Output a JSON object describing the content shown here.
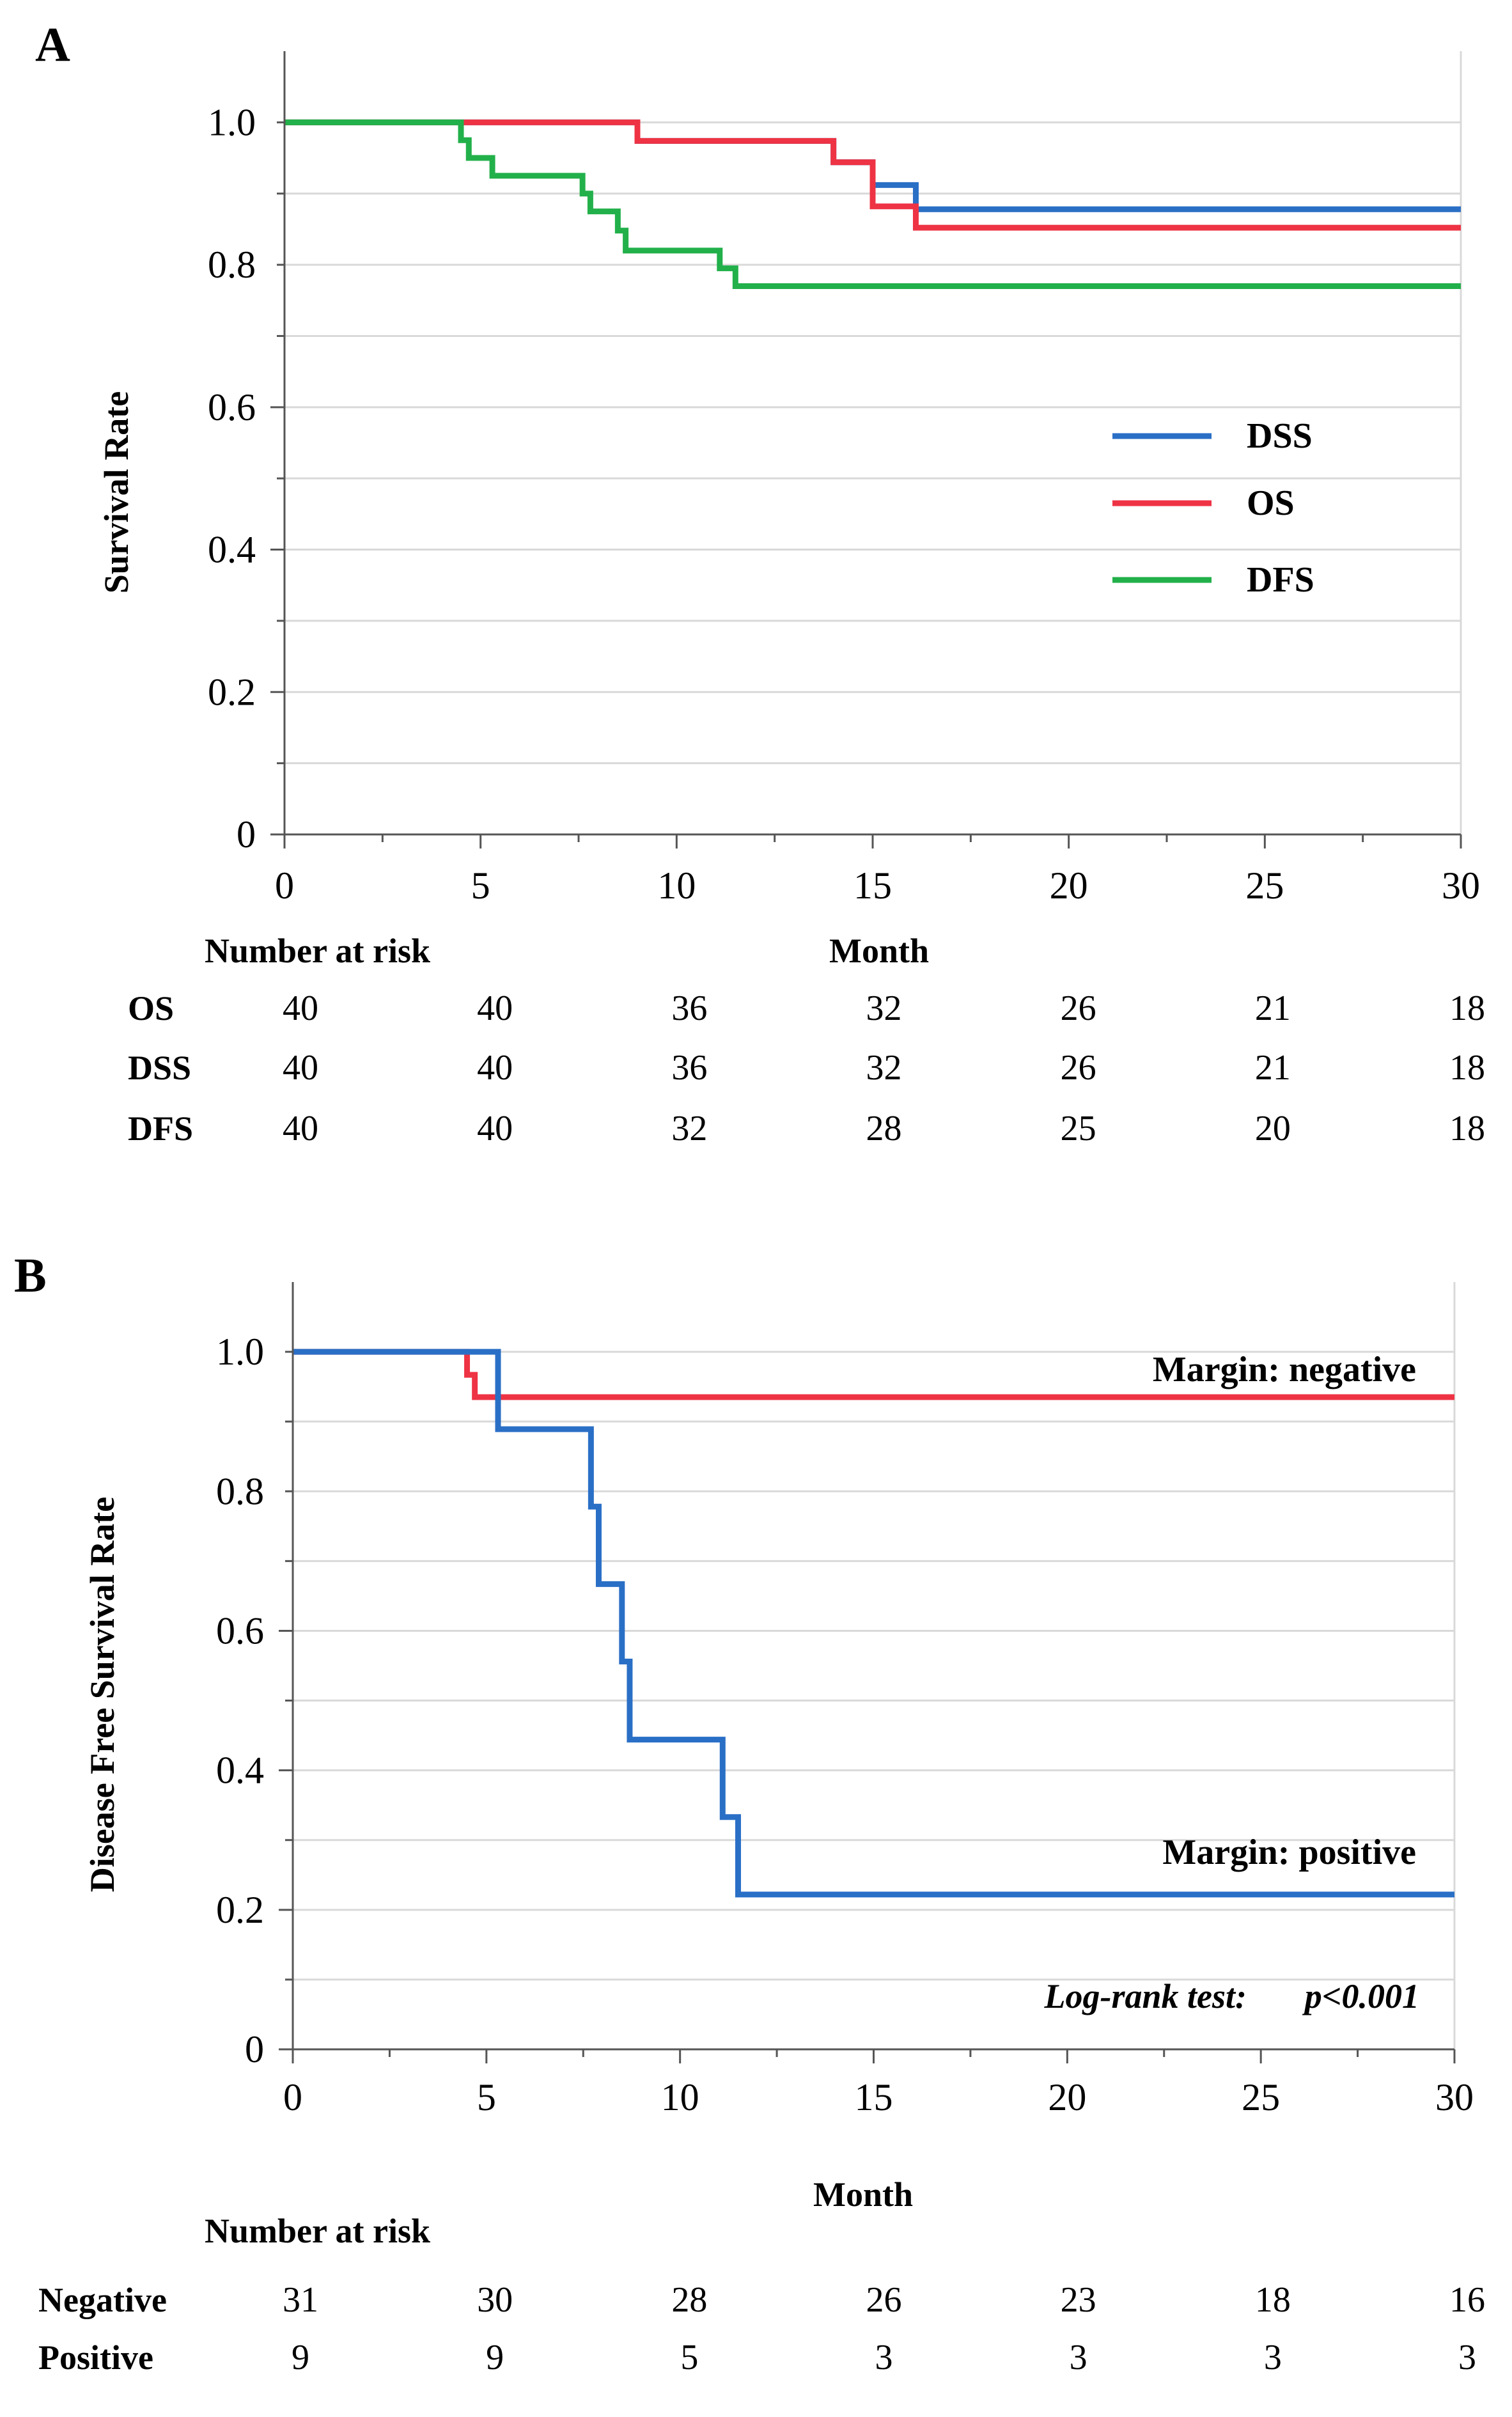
{
  "panels": [
    {
      "letter": "A",
      "ylabel": "Survival Rate",
      "xlabel": "Month",
      "risk_header": "Number at risk",
      "x_ticks": [
        "0",
        "5",
        "10",
        "15",
        "20",
        "25",
        "30"
      ],
      "y_ticks": [
        "0",
        "0.2",
        "0.4",
        "0.6",
        "0.8",
        "1.0"
      ]
    },
    {
      "letter": "B",
      "ylabel": "Disease Free Survival Rate",
      "xlabel": "Month",
      "risk_header": "Number at risk",
      "x_ticks": [
        "0",
        "5",
        "10",
        "15",
        "20",
        "25",
        "30"
      ],
      "y_ticks": [
        "0",
        "0.2",
        "0.4",
        "0.6",
        "0.8",
        "1.0"
      ],
      "annotation_test": "Log-rank test:",
      "annotation_p": "p<0.001"
    }
  ],
  "colors": {
    "blue": "#2a6fc6",
    "red": "#ee3344",
    "green": "#22b04a"
  },
  "chart_data": [
    {
      "type": "line",
      "step": true,
      "title": "",
      "xlabel": "Month",
      "ylabel": "Survival Rate",
      "xlim": [
        0,
        30
      ],
      "ylim": [
        0,
        1.1
      ],
      "legend": "right",
      "series": [
        {
          "name": "DSS",
          "color": "#2a6fc6",
          "x": [
            0,
            9.0,
            14.0,
            15.0,
            16.1,
            30
          ],
          "y": [
            1.0,
            0.974,
            0.944,
            0.912,
            0.878,
            0.878
          ]
        },
        {
          "name": "OS",
          "color": "#ee3344",
          "x": [
            0,
            9.0,
            14.0,
            15.0,
            16.1,
            30
          ],
          "y": [
            1.0,
            0.974,
            0.944,
            0.882,
            0.852,
            0.852
          ]
        },
        {
          "name": "DFS",
          "color": "#22b04a",
          "x": [
            0,
            4.5,
            4.7,
            5.3,
            7.6,
            7.8,
            8.5,
            8.7,
            11.1,
            11.5,
            30
          ],
          "y": [
            1.0,
            0.975,
            0.95,
            0.925,
            0.9,
            0.875,
            0.848,
            0.82,
            0.795,
            0.77,
            0.77
          ]
        }
      ],
      "risk_table": {
        "header": "Number at risk",
        "times": [
          0,
          5,
          10,
          15,
          20,
          25,
          30
        ],
        "rows": [
          {
            "label": "OS",
            "values": [
              "40",
              "40",
              "36",
              "32",
              "26",
              "21",
              "18"
            ]
          },
          {
            "label": "DSS",
            "values": [
              "40",
              "40",
              "36",
              "32",
              "26",
              "21",
              "18"
            ]
          },
          {
            "label": "DFS",
            "values": [
              "40",
              "40",
              "32",
              "28",
              "25",
              "20",
              "18"
            ]
          }
        ]
      }
    },
    {
      "type": "line",
      "step": true,
      "title": "",
      "xlabel": "Month",
      "ylabel": "Disease Free Survival Rate",
      "xlim": [
        0,
        30
      ],
      "ylim": [
        0,
        1.1
      ],
      "series": [
        {
          "name": "Margin: negative",
          "color": "#ee3344",
          "x": [
            0,
            4.5,
            4.7,
            30
          ],
          "y": [
            1.0,
            0.967,
            0.935,
            0.935
          ]
        },
        {
          "name": "Margin: positive",
          "color": "#2a6fc6",
          "x": [
            0,
            5.3,
            7.7,
            7.9,
            8.5,
            8.7,
            11.1,
            11.5,
            30
          ],
          "y": [
            1.0,
            0.889,
            0.778,
            0.667,
            0.556,
            0.444,
            0.333,
            0.222,
            0.222
          ]
        }
      ],
      "annotations": [
        "Log-rank test:",
        "p<0.001"
      ],
      "risk_table": {
        "header": "Number at risk",
        "times": [
          0,
          5,
          10,
          15,
          20,
          25,
          30
        ],
        "rows": [
          {
            "label": "Negative",
            "values": [
              "31",
              "30",
              "28",
              "26",
              "23",
              "18",
              "16"
            ]
          },
          {
            "label": "Positive",
            "values": [
              "9",
              "9",
              "5",
              "3",
              "3",
              "3",
              "3"
            ]
          }
        ]
      }
    }
  ]
}
